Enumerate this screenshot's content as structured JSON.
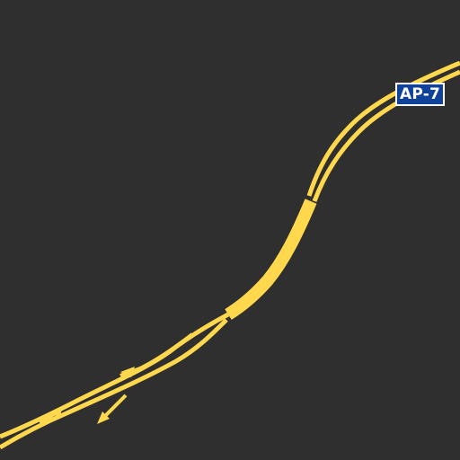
{
  "map": {
    "background_color": "#2f2f2f",
    "road_color": "#ffd84d",
    "road_kind": "motorway"
  },
  "shield": {
    "label": "AP-7",
    "background_color": "#10429a",
    "text_color": "#ffffff"
  }
}
